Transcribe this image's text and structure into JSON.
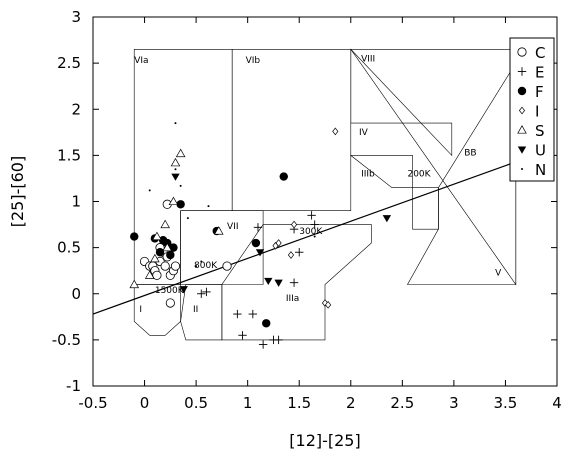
{
  "chart_data": {
    "type": "scatter",
    "title": "",
    "xlabel": "[12]-[25]",
    "ylabel": "[25]-[60]",
    "xlim": [
      -0.5,
      4
    ],
    "ylim": [
      -1,
      3
    ],
    "xticks": [
      "-0.5",
      "0",
      "0.5",
      "1",
      "1.5",
      "2",
      "2.5",
      "3",
      "3.5",
      "4"
    ],
    "yticks": [
      "-1",
      "-0.5",
      "0",
      "0.5",
      "1",
      "1.5",
      "2",
      "2.5",
      "3"
    ],
    "grid": false,
    "legend_position": "top-right",
    "legend": [
      {
        "marker": "open-circle",
        "label": "C"
      },
      {
        "marker": "plus",
        "label": "E"
      },
      {
        "marker": "filled-circle",
        "label": "F"
      },
      {
        "marker": "open-diamond",
        "label": "I"
      },
      {
        "marker": "open-triangle",
        "label": "S"
      },
      {
        "marker": "filled-down-triangle",
        "label": "U"
      },
      {
        "marker": "dot",
        "label": "N"
      }
    ],
    "regions": [
      {
        "label": "I",
        "polygon": [
          [
            -0.1,
            0.1
          ],
          [
            0.35,
            0.1
          ],
          [
            0.35,
            -0.3
          ],
          [
            0.2,
            -0.45
          ],
          [
            0.05,
            -0.45
          ],
          [
            -0.1,
            -0.3
          ]
        ]
      },
      {
        "label": "II",
        "polygon": [
          [
            0.4,
            0.1
          ],
          [
            0.75,
            0.1
          ],
          [
            0.75,
            -0.5
          ],
          [
            0.4,
            -0.5
          ],
          [
            0.35,
            -0.3
          ]
        ]
      },
      {
        "label": "IIIa",
        "polygon": [
          [
            0.75,
            0.1
          ],
          [
            0.75,
            -0.5
          ],
          [
            1.75,
            -0.5
          ],
          [
            1.75,
            0.1
          ],
          [
            2.2,
            0.55
          ],
          [
            2.2,
            0.75
          ],
          [
            1.15,
            0.75
          ]
        ]
      },
      {
        "label": "IIIb",
        "polygon": [
          [
            2.0,
            1.5
          ],
          [
            2.6,
            1.5
          ],
          [
            2.6,
            0.7
          ],
          [
            2.85,
            0.7
          ],
          [
            2.85,
            1.15
          ],
          [
            2.4,
            1.15
          ]
        ]
      },
      {
        "label": "IV",
        "polygon": [
          [
            2.0,
            2.65
          ],
          [
            2.0,
            1.85
          ],
          [
            2.98,
            1.85
          ],
          [
            2.98,
            1.5
          ]
        ]
      },
      {
        "label": "V",
        "polygon": [
          [
            2.85,
            1.15
          ],
          [
            2.85,
            0.7
          ],
          [
            2.55,
            0.1
          ],
          [
            3.6,
            0.1
          ],
          [
            3.6,
            2.5
          ]
        ]
      },
      {
        "label": "VIa",
        "polygon": [
          [
            -0.1,
            2.65
          ],
          [
            0.85,
            2.65
          ],
          [
            0.85,
            0.9
          ],
          [
            0.35,
            0.9
          ],
          [
            0.35,
            0.1
          ],
          [
            -0.1,
            0.1
          ]
        ]
      },
      {
        "label": "VIb",
        "polygon": [
          [
            0.85,
            2.65
          ],
          [
            2.0,
            2.65
          ],
          [
            2.0,
            0.9
          ],
          [
            0.85,
            0.9
          ]
        ]
      },
      {
        "label": "VII",
        "polygon": [
          [
            0.35,
            0.9
          ],
          [
            1.15,
            0.9
          ],
          [
            1.15,
            0.1
          ],
          [
            0.35,
            0.1
          ]
        ]
      },
      {
        "label": "VIII",
        "polygon": [
          [
            2.0,
            2.65
          ],
          [
            3.6,
            2.65
          ],
          [
            3.6,
            0.1
          ]
        ]
      }
    ],
    "region_labels": [
      {
        "text": "I",
        "x": -0.05,
        "y": -0.2
      },
      {
        "text": "II",
        "x": 0.47,
        "y": -0.2
      },
      {
        "text": "IIIa",
        "x": 1.37,
        "y": -0.08
      },
      {
        "text": "IIIb",
        "x": 2.1,
        "y": 1.27
      },
      {
        "text": "IV",
        "x": 2.08,
        "y": 1.72
      },
      {
        "text": "V",
        "x": 3.4,
        "y": 0.2
      },
      {
        "text": "VIa",
        "x": -0.1,
        "y": 2.5
      },
      {
        "text": "VIb",
        "x": 0.98,
        "y": 2.5
      },
      {
        "text": "VII",
        "x": 0.8,
        "y": 0.7
      },
      {
        "text": "VIII",
        "x": 2.1,
        "y": 2.52
      },
      {
        "text": "BB",
        "x": 3.1,
        "y": 1.5
      }
    ],
    "blackbody_line": {
      "label": "BB",
      "x": [
        -0.5,
        3.95
      ],
      "y": [
        -0.22,
        1.57
      ]
    },
    "temperature_labels": [
      {
        "text": "200K",
        "x": 2.55,
        "y": 1.27
      },
      {
        "text": "300K",
        "x": 1.5,
        "y": 0.65
      },
      {
        "text": "800K",
        "x": 0.48,
        "y": 0.28
      },
      {
        "text": "1500K",
        "x": 0.1,
        "y": 0.01
      }
    ],
    "series": [
      {
        "name": "C",
        "marker": "open-circle",
        "x": [
          0.0,
          0.05,
          0.08,
          0.1,
          0.12,
          0.15,
          0.18,
          0.2,
          0.22,
          0.25,
          0.28,
          0.3,
          0.15,
          0.22,
          0.8,
          0.25
        ],
        "y": [
          0.35,
          0.3,
          0.3,
          0.25,
          0.2,
          0.35,
          0.45,
          0.3,
          0.4,
          0.2,
          0.25,
          0.3,
          0.5,
          0.97,
          0.3,
          -0.1
        ]
      },
      {
        "name": "E",
        "marker": "plus",
        "x": [
          0.55,
          0.9,
          1.05,
          0.95,
          1.15,
          1.25,
          1.3,
          1.45,
          1.5,
          1.62,
          1.65,
          1.1,
          1.45,
          0.6
        ],
        "y": [
          0.0,
          -0.22,
          -0.22,
          -0.45,
          -0.55,
          -0.5,
          -0.5,
          0.12,
          0.45,
          0.85,
          0.75,
          0.72,
          0.7,
          0.02
        ]
      },
      {
        "name": "F",
        "marker": "filled-circle",
        "x": [
          -0.1,
          0.1,
          0.18,
          0.22,
          0.28,
          0.15,
          0.25,
          0.35,
          0.7,
          1.08,
          1.35,
          1.18
        ],
        "y": [
          0.62,
          0.6,
          0.58,
          0.55,
          0.5,
          0.45,
          0.42,
          0.97,
          0.68,
          0.55,
          1.27,
          -0.32
        ]
      },
      {
        "name": "I",
        "marker": "open-diamond",
        "x": [
          1.27,
          1.42,
          1.85,
          1.75,
          1.78,
          1.45,
          1.3
        ],
        "y": [
          0.52,
          0.42,
          1.76,
          -0.1,
          -0.12,
          0.75,
          0.55
        ]
      },
      {
        "name": "S",
        "marker": "open-triangle",
        "x": [
          -0.1,
          0.05,
          0.1,
          0.12,
          0.2,
          0.22,
          0.28,
          0.35,
          0.3,
          0.72
        ],
        "y": [
          0.1,
          0.2,
          0.38,
          0.62,
          0.75,
          0.5,
          1.0,
          1.52,
          1.42,
          0.68
        ]
      },
      {
        "name": "U",
        "marker": "filled-down-triangle",
        "x": [
          0.3,
          0.38,
          1.12,
          1.2,
          1.3,
          2.35
        ],
        "y": [
          1.27,
          0.05,
          0.45,
          0.14,
          0.12,
          0.82
        ]
      },
      {
        "name": "N",
        "marker": "dot",
        "x": [
          0.3,
          0.3,
          0.35,
          0.42,
          0.55,
          1.65,
          0.05,
          0.2,
          0.5,
          0.62
        ],
        "y": [
          1.85,
          1.35,
          1.17,
          0.82,
          0.35,
          0.62,
          1.12,
          0.58,
          0.3,
          0.95
        ]
      }
    ]
  }
}
